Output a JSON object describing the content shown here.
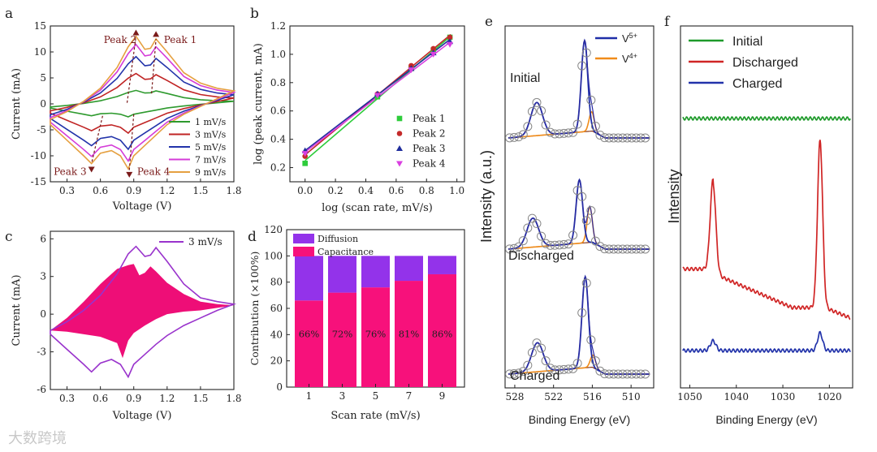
{
  "watermark": "大数跨境",
  "chart_data": [
    {
      "panel": "a",
      "type": "line",
      "xlabel": "Voltage (V)",
      "ylabel": "Current (mA)",
      "xlim": [
        0.15,
        1.8
      ],
      "ylim": [
        -15,
        15
      ],
      "xticks": [
        0.3,
        0.6,
        0.9,
        1.2,
        1.5,
        1.8
      ],
      "yticks": [
        -15,
        -10,
        -5,
        0,
        5,
        10,
        15
      ],
      "series": [
        {
          "name": "1 mV/s",
          "color": "#2e9a2e",
          "scale": 0.2
        },
        {
          "name": "3 mV/s",
          "color": "#c02424",
          "scale": 0.45
        },
        {
          "name": "5 mV/s",
          "color": "#2233aa",
          "scale": 0.7
        },
        {
          "name": "7 mV/s",
          "color": "#d43cd8",
          "scale": 0.88
        },
        {
          "name": "9 mV/s",
          "color": "#e5a040",
          "scale": 1.0
        }
      ],
      "anodic_x": [
        0.15,
        0.3,
        0.45,
        0.6,
        0.75,
        0.85,
        0.92,
        1.0,
        1.05,
        1.1,
        1.2,
        1.35,
        1.5,
        1.65,
        1.8
      ],
      "anodic_y": [
        -3,
        -1.5,
        0.5,
        3,
        7,
        11,
        13,
        10.5,
        10.7,
        12.5,
        10,
        6,
        4,
        3,
        2.5
      ],
      "cathodic_x": [
        1.8,
        1.65,
        1.5,
        1.35,
        1.2,
        1.1,
        1.0,
        0.9,
        0.85,
        0.78,
        0.7,
        0.6,
        0.52,
        0.45,
        0.3,
        0.15
      ],
      "cathodic_y": [
        2.5,
        1,
        -0.5,
        -2,
        -4,
        -6,
        -8,
        -10,
        -12.5,
        -10,
        -9,
        -9.5,
        -11.5,
        -10,
        -7,
        -4
      ],
      "annotations": [
        {
          "text": "Peak 2",
          "x": 0.63,
          "y": 11.7
        },
        {
          "text": "Peak 1",
          "x": 1.17,
          "y": 11.7
        },
        {
          "text": "Peak 3",
          "x": 0.18,
          "y": -13.7
        },
        {
          "text": "Peak 4",
          "x": 0.93,
          "y": -13.7
        }
      ]
    },
    {
      "panel": "b",
      "type": "scatter",
      "xlabel": "log (scan rate, mV/s)",
      "ylabel": "log (peak current, mA)",
      "xlim": [
        -0.1,
        1.05
      ],
      "ylim": [
        0.1,
        1.2
      ],
      "xticks": [
        0.0,
        0.2,
        0.4,
        0.6,
        0.8,
        1.0
      ],
      "yticks": [
        0.2,
        0.4,
        0.6,
        0.8,
        1.0,
        1.2
      ],
      "x": [
        0.0,
        0.477,
        0.699,
        0.845,
        0.954
      ],
      "series": [
        {
          "name": "Peak 1",
          "color": "#2ecc3b",
          "marker": "square",
          "values": [
            0.23,
            0.7,
            0.9,
            1.03,
            1.12
          ],
          "fit": [
            0.25,
            1.13
          ]
        },
        {
          "name": "Peak 2",
          "color": "#c42a2a",
          "marker": "circle",
          "values": [
            0.28,
            0.72,
            0.92,
            1.04,
            1.12
          ],
          "fit": [
            0.29,
            1.14
          ]
        },
        {
          "name": "Peak 3",
          "color": "#1f2d9c",
          "marker": "triangle-up",
          "values": [
            0.32,
            0.72,
            0.9,
            1.01,
            1.09
          ],
          "fit": [
            0.32,
            1.11
          ]
        },
        {
          "name": "Peak 4",
          "color": "#d93fe0",
          "marker": "triangle-down",
          "values": [
            0.3,
            0.71,
            0.89,
            1.0,
            1.07
          ],
          "fit": [
            0.31,
            1.09
          ]
        }
      ]
    },
    {
      "panel": "c",
      "type": "area",
      "xlabel": "Voltage (V)",
      "ylabel": "Current (mA)",
      "xlim": [
        0.15,
        1.8
      ],
      "ylim": [
        -6,
        6.6
      ],
      "xticks": [
        0.3,
        0.6,
        0.9,
        1.2,
        1.5,
        1.8
      ],
      "yticks": [
        -6,
        -3,
        0,
        3,
        6
      ],
      "series": [
        {
          "name": "3 mV/s",
          "color": "#9933cc"
        }
      ],
      "fill_color": "#ee0e77",
      "total_x": [
        0.15,
        0.3,
        0.45,
        0.6,
        0.75,
        0.85,
        0.92,
        1.0,
        1.05,
        1.1,
        1.2,
        1.35,
        1.5,
        1.65,
        1.8,
        1.65,
        1.5,
        1.35,
        1.2,
        1.1,
        1.0,
        0.9,
        0.85,
        0.78,
        0.7,
        0.6,
        0.52,
        0.45,
        0.3,
        0.15
      ],
      "total_y": [
        -1.3,
        -0.6,
        0.3,
        1.5,
        3.2,
        4.8,
        5.4,
        4.6,
        4.7,
        5.3,
        4.2,
        2.4,
        1.3,
        1.0,
        0.8,
        0.3,
        -0.3,
        -0.9,
        -1.7,
        -2.4,
        -3.2,
        -4.0,
        -5.0,
        -4.0,
        -3.6,
        -3.9,
        -4.6,
        -4.0,
        -2.8,
        -1.6
      ],
      "capacitive_x": [
        0.15,
        0.3,
        0.45,
        0.6,
        0.75,
        0.85,
        0.9,
        0.95,
        1.0,
        1.05,
        1.1,
        1.2,
        1.35,
        1.5,
        1.65,
        1.8,
        1.65,
        1.5,
        1.35,
        1.2,
        1.1,
        1.0,
        0.9,
        0.85,
        0.8,
        0.75,
        0.6,
        0.45,
        0.3,
        0.15
      ],
      "capacitive_y": [
        -1.3,
        -0.3,
        1.0,
        2.4,
        3.6,
        3.9,
        4.0,
        3.1,
        3.3,
        3.8,
        3.4,
        2.5,
        1.6,
        1.0,
        0.8,
        0.7,
        0.5,
        0.3,
        0.2,
        0.0,
        -0.4,
        -0.9,
        -1.5,
        -2.1,
        -3.5,
        -2.3,
        -1.8,
        -1.6,
        -1.4,
        -1.3
      ]
    },
    {
      "panel": "d",
      "type": "bar",
      "xlabel": "Scan rate (mV/s)",
      "ylabel": "Contribution (×100%)",
      "ylim": [
        0,
        120
      ],
      "yticks": [
        0,
        20,
        40,
        60,
        80,
        100,
        120
      ],
      "categories": [
        "1",
        "3",
        "5",
        "7",
        "9"
      ],
      "series": [
        {
          "name": "Capacitance",
          "color": "#f7117b",
          "values": [
            66,
            72,
            76,
            81,
            86
          ]
        },
        {
          "name": "Diffusion",
          "color": "#9333ea",
          "values": [
            34,
            28,
            24,
            19,
            14
          ]
        }
      ],
      "data_labels": [
        "66%",
        "72%",
        "76%",
        "81%",
        "86%"
      ]
    },
    {
      "panel": "e",
      "type": "line",
      "xlabel": "Binding Energy (eV)",
      "ylabel": "Intensity (a.u.)",
      "xlim": [
        529.5,
        506.5
      ],
      "xticks": [
        528,
        522,
        516,
        510
      ],
      "legend": [
        {
          "name": "V5+",
          "base": "V",
          "sup": "5+",
          "color": "#1f2ea8"
        },
        {
          "name": "V4+",
          "base": "V",
          "sup": "4+",
          "color": "#f08c1a"
        }
      ],
      "spectra": [
        {
          "label": "Initial",
          "v5_center": 517.2,
          "v5_height": 3.3,
          "v4_center": 516.1,
          "v4_height": 0.7,
          "ref_center": 524.6,
          "ref_height": 1.2
        },
        {
          "label": "Discharged",
          "v5_center": 518.0,
          "v5_height": 2.3,
          "v4_center": 516.4,
          "v4_height": 1.3,
          "ref_center": 525.2,
          "ref_height": 1.05
        },
        {
          "label": "Charged",
          "v5_center": 517.1,
          "v5_height": 3.3,
          "v4_center": 515.9,
          "v4_height": 0.45,
          "ref_center": 524.5,
          "ref_height": 1.05
        }
      ]
    },
    {
      "panel": "f",
      "type": "line",
      "xlabel": "Binding Energy (eV)",
      "ylabel": "Intensity",
      "xlim": [
        1052,
        1015
      ],
      "xticks": [
        1050,
        1040,
        1030,
        1020
      ],
      "series": [
        {
          "name": "Initial",
          "color": "#1e9a2a",
          "peak1_height": 0.0,
          "peak2_height": 0.0
        },
        {
          "name": "Discharged",
          "color": "#d02525",
          "peak1_height": 2.3,
          "peak2_height": 4.3
        },
        {
          "name": "Charged",
          "color": "#2233aa",
          "peak1_height": 0.25,
          "peak2_height": 0.45
        }
      ],
      "peak_positions": [
        1045.0,
        1022.0
      ]
    }
  ]
}
